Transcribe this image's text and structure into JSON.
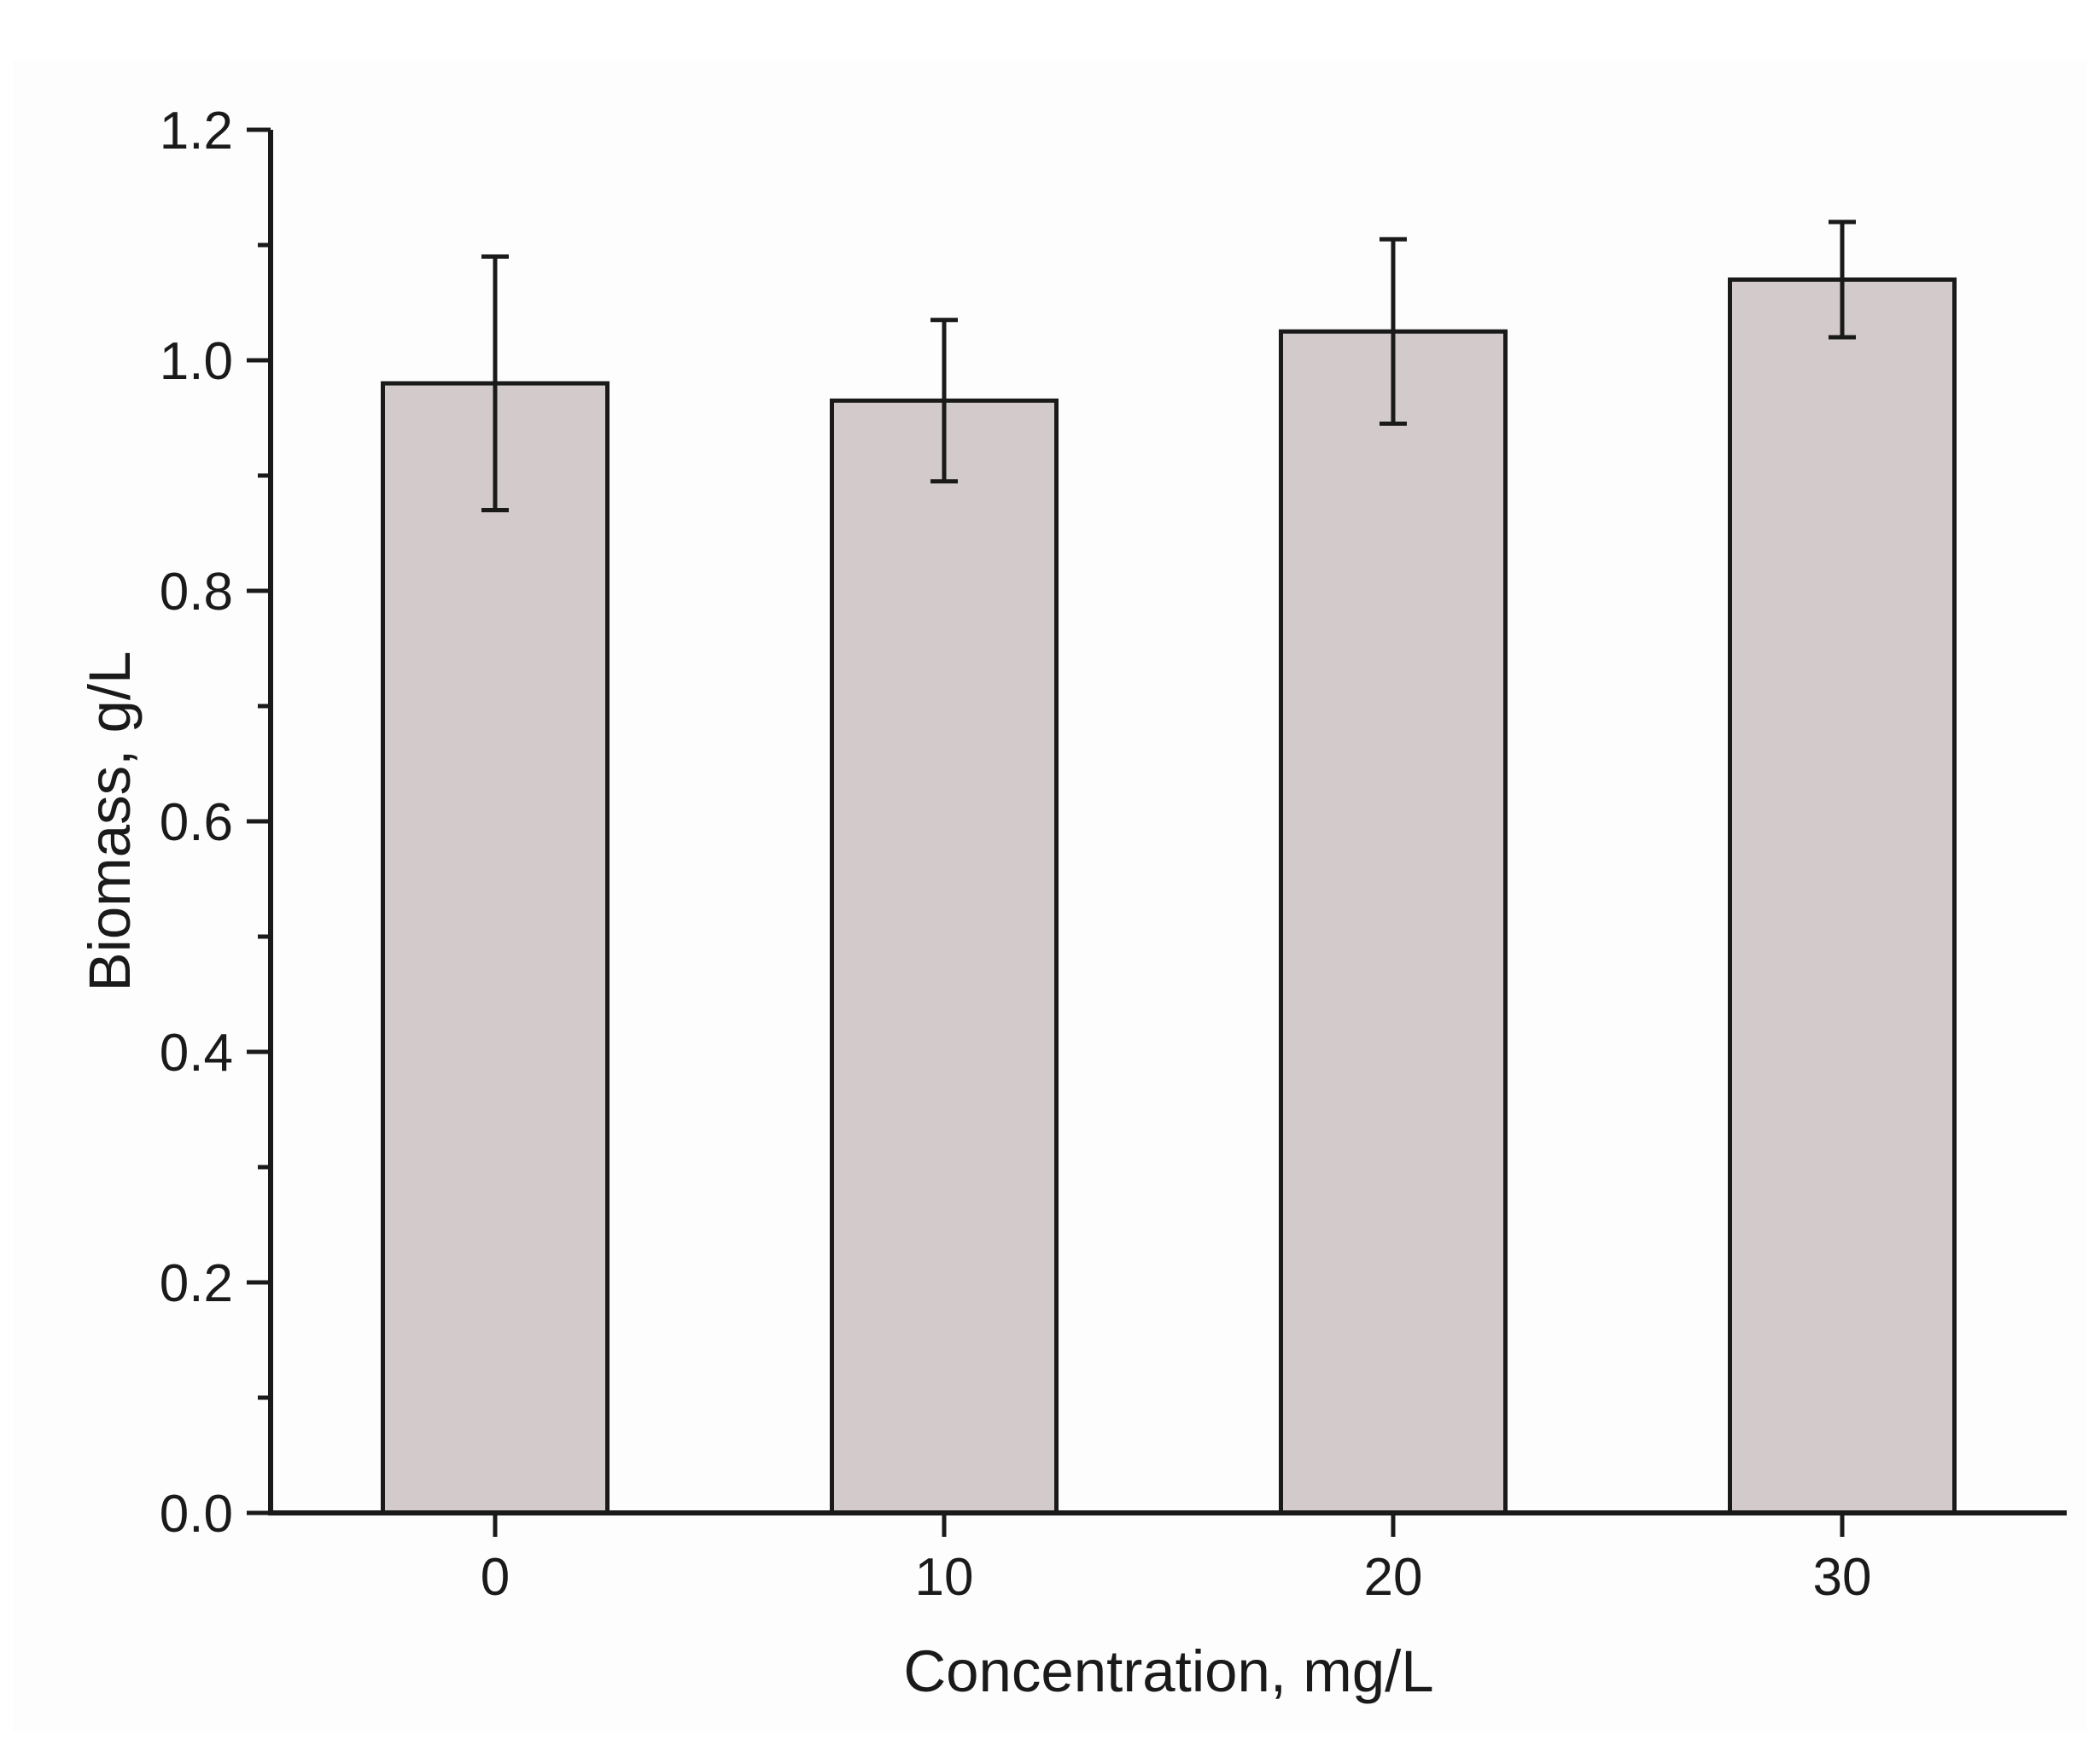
{
  "page": {
    "background": "#ffffff"
  },
  "chart_data": {
    "type": "bar",
    "title": "",
    "xlabel": "Concentration, mg/L",
    "ylabel": "Biomass, g/L",
    "categories": [
      "0",
      "10",
      "20",
      "30"
    ],
    "values": [
      0.98,
      0.965,
      1.025,
      1.07
    ],
    "error_bars": [
      0.11,
      0.07,
      0.08,
      0.05
    ],
    "ylim": [
      0.0,
      1.2
    ],
    "ytick_labels": [
      "0.0",
      "0.2",
      "0.4",
      "0.6",
      "0.8",
      "1.0",
      "1.2"
    ],
    "ytick_step_major": 0.2,
    "ytick_step_minor": 0.1,
    "grid": false,
    "legend": "none",
    "colors": {
      "bar_fill": "#d3cbcb",
      "bar_border": "#1a1a1a",
      "axis": "#1a1a1a",
      "text": "#1a1a1a",
      "error_bar": "#1a1a1a"
    }
  }
}
